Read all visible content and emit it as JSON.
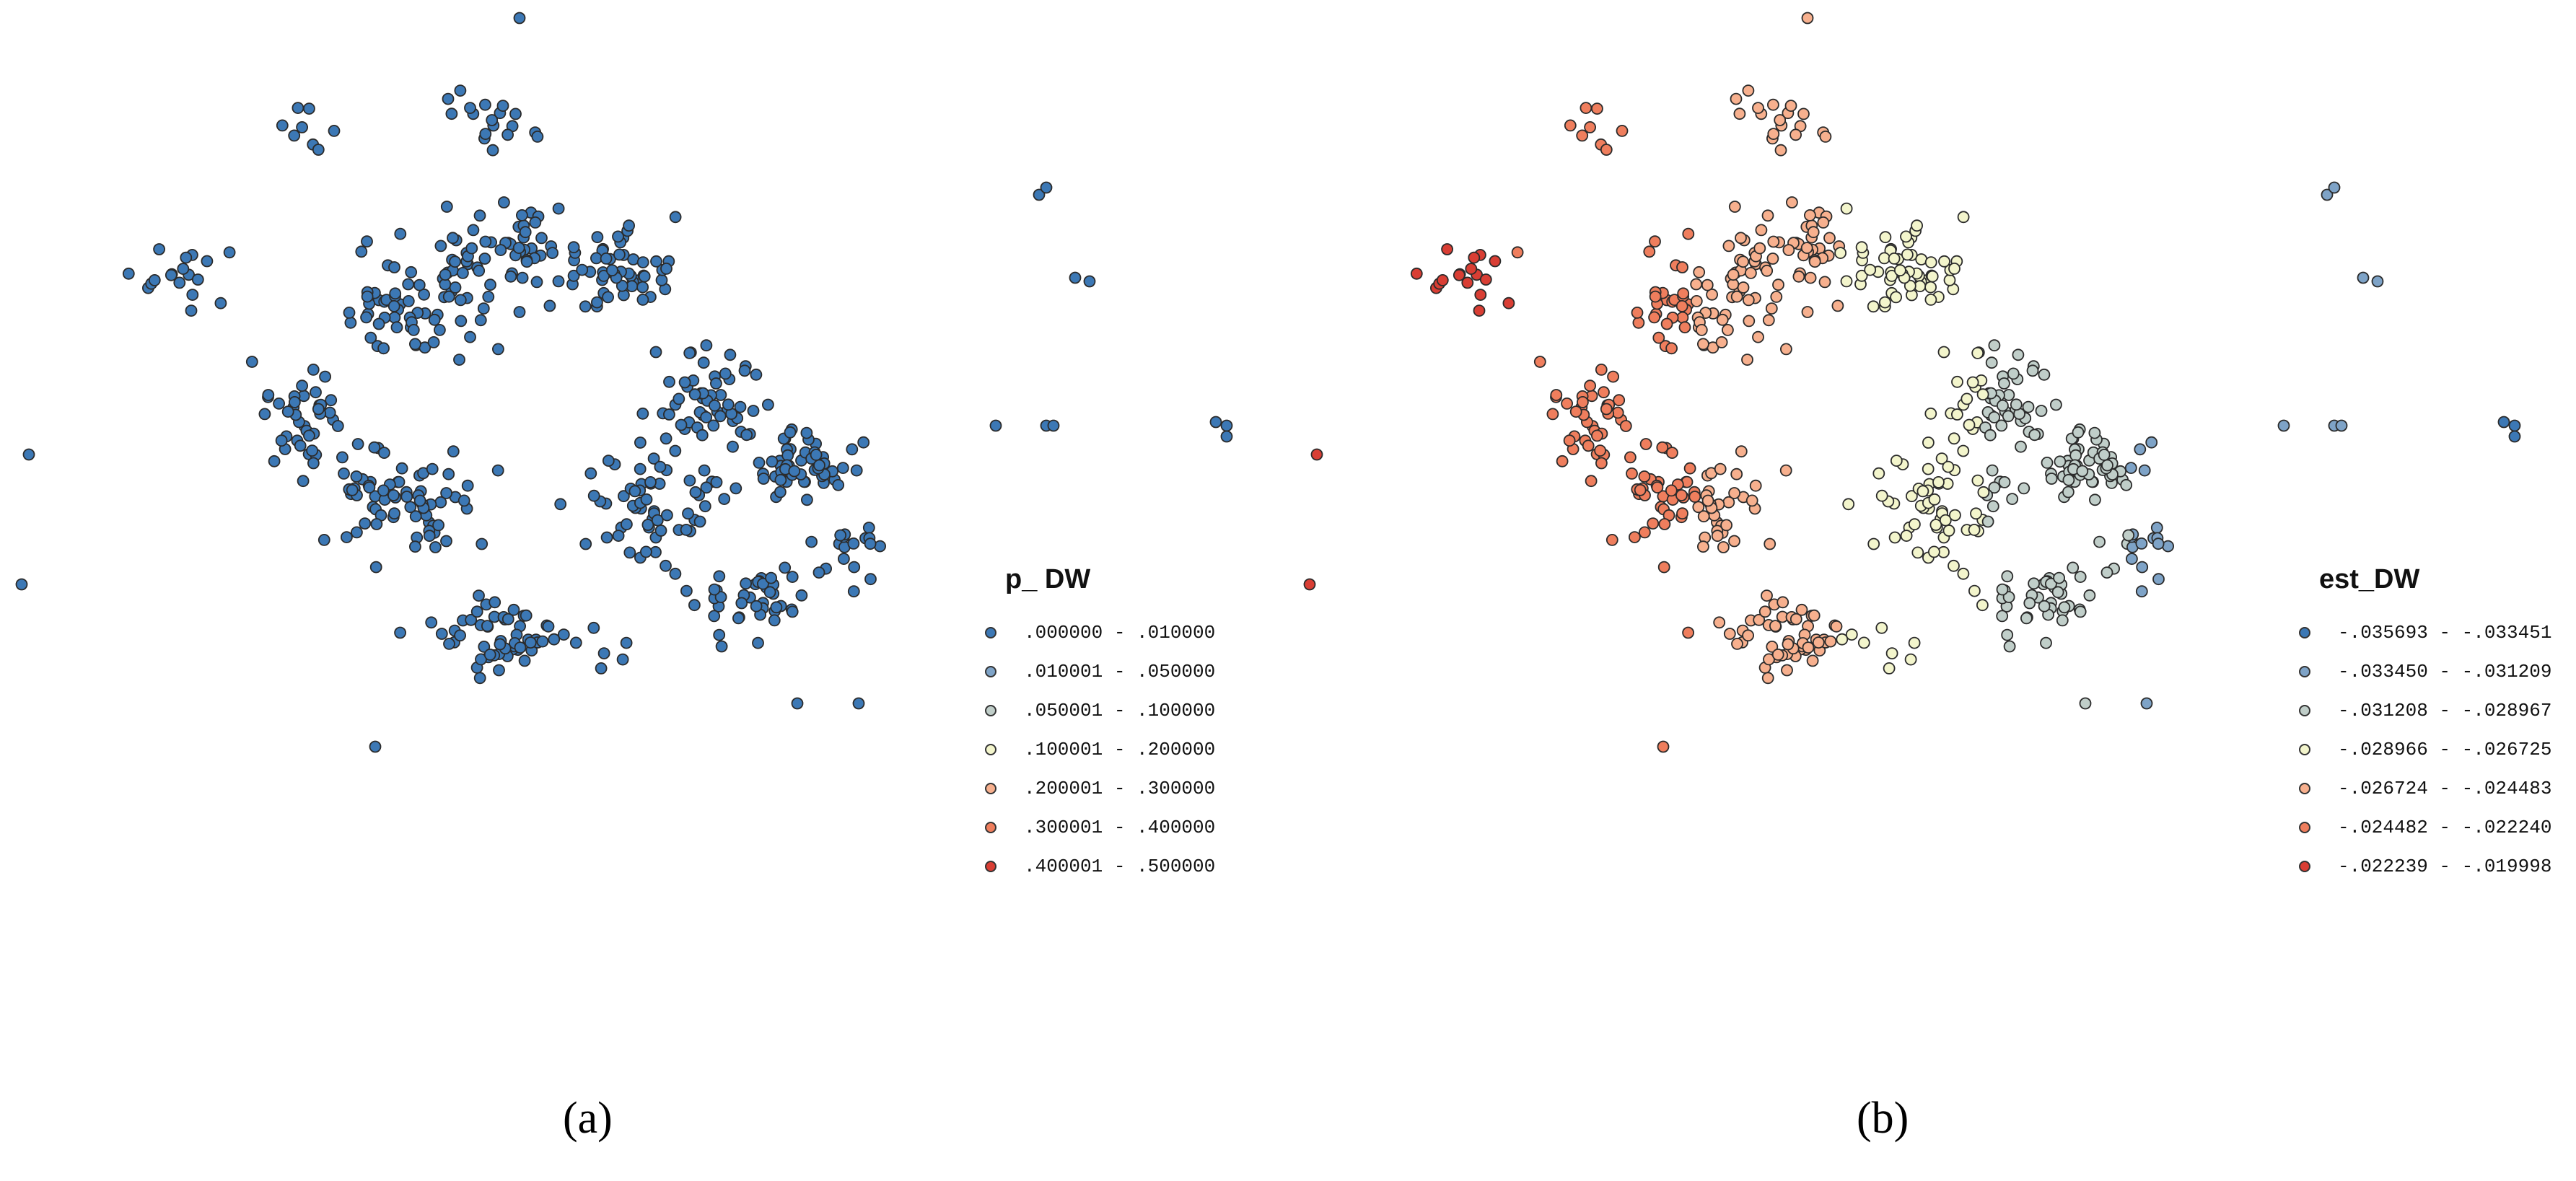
{
  "panels": [
    {
      "id": "a",
      "caption": "(a)",
      "legend": {
        "title": "p_ DW",
        "classes": [
          {
            "label": ".000000 - .010000",
            "color": "#3c78b5"
          },
          {
            "label": ".010001 - .050000",
            "color": "#7ea3c7"
          },
          {
            "label": ".050001 - .100000",
            "color": "#c0cec9"
          },
          {
            "label": ".100001 - .200000",
            "color": "#f3f5cc"
          },
          {
            "label": ".200001 - .300000",
            "color": "#f7b08e"
          },
          {
            "label": ".300001 - .400000",
            "color": "#ef7e5d"
          },
          {
            "label": ".400001 - .500000",
            "color": "#d93e34"
          }
        ]
      }
    },
    {
      "id": "b",
      "caption": "(b)",
      "legend": {
        "title": "est_DW",
        "classes": [
          {
            "label": "-.035693 - -.033451",
            "color": "#3c78b5"
          },
          {
            "label": "-.033450 - -.031209",
            "color": "#7ea3c7"
          },
          {
            "label": "-.031208 - -.028967",
            "color": "#c0cec9"
          },
          {
            "label": "-.028966 - -.026725",
            "color": "#f3f5cc"
          },
          {
            "label": "-.026724 - -.024483",
            "color": "#f7b08e"
          },
          {
            "label": "-.024482 - -.022240",
            "color": "#ef7e5d"
          },
          {
            "label": "-.022239 - -.019998",
            "color": "#d93e34"
          }
        ]
      }
    }
  ]
}
